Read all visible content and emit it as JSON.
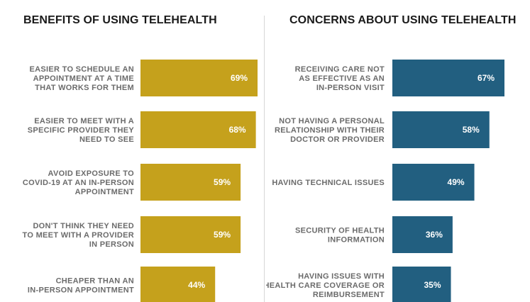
{
  "colors": {
    "benefits_bar": "#c5a11c",
    "concerns_bar": "#225f80"
  },
  "chart_data": [
    {
      "type": "bar",
      "orientation": "horizontal",
      "title": "BENEFITS OF USING TELEHEALTH",
      "color": "#c5a11c",
      "categories": [
        [
          "EASIER TO SCHEDULE AN",
          "APPOINTMENT AT A TIME",
          "THAT WORKS FOR THEM"
        ],
        [
          "EASIER TO MEET WITH A",
          "SPECIFIC PROVIDER THEY",
          "NEED TO SEE"
        ],
        [
          "AVOID EXPOSURE TO",
          "COVID-19 AT AN IN-PERSON",
          "APPOINTMENT"
        ],
        [
          "DON'T THINK THEY NEED",
          "TO MEET WITH A PROVIDER",
          "IN PERSON"
        ],
        [
          "CHEAPER THAN AN",
          "IN-PERSON APPOINTMENT"
        ]
      ],
      "values": [
        69,
        68,
        59,
        59,
        44
      ],
      "value_labels": [
        "69%",
        "68%",
        "59%",
        "59%",
        "44%"
      ],
      "xlim": [
        0,
        100
      ]
    },
    {
      "type": "bar",
      "orientation": "horizontal",
      "title": "CONCERNS ABOUT USING TELEHEALTH",
      "color": "#225f80",
      "categories": [
        [
          "RECEIVING CARE NOT",
          "AS EFFECTIVE AS AN",
          "IN-PERSON VISIT"
        ],
        [
          "NOT HAVING A PERSONAL",
          "RELATIONSHIP WITH THEIR",
          "DOCTOR OR PROVIDER"
        ],
        [
          "HAVING TECHNICAL ISSUES"
        ],
        [
          "SECURITY OF HEALTH",
          "INFORMATION"
        ],
        [
          "HAVING ISSUES WITH",
          "HEALTH CARE COVERAGE OR",
          "REIMBURSEMENT"
        ]
      ],
      "values": [
        67,
        58,
        49,
        36,
        35
      ],
      "value_labels": [
        "67%",
        "58%",
        "49%",
        "36%",
        "35%"
      ],
      "xlim": [
        0,
        100
      ]
    }
  ]
}
